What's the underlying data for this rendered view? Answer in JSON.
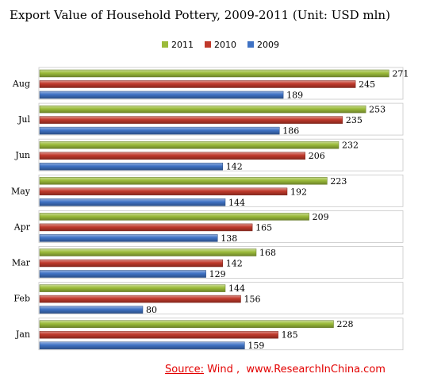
{
  "title": "Export Value of Household Pottery, 2009-2011 (Unit: USD mln)",
  "source": {
    "label": "Source:",
    "text": " Wind ,  www.ResearchInChina.com"
  },
  "chart_data": {
    "type": "bar",
    "orientation": "horizontal",
    "categories": [
      "Jan",
      "Feb",
      "Mar",
      "Apr",
      "May",
      "Jun",
      "Jul",
      "Aug"
    ],
    "series": [
      {
        "name": "2011",
        "color": "#9bbb3a",
        "values": [
          228,
          144,
          168,
          209,
          223,
          232,
          253,
          271
        ]
      },
      {
        "name": "2010",
        "color": "#c0392b",
        "values": [
          185,
          156,
          142,
          165,
          192,
          206,
          235,
          245
        ]
      },
      {
        "name": "2009",
        "color": "#3f72c4",
        "values": [
          159,
          80,
          129,
          138,
          144,
          142,
          186,
          189
        ]
      }
    ],
    "xlim": [
      0,
      280
    ],
    "legend_position": "top-center",
    "grid": false
  }
}
